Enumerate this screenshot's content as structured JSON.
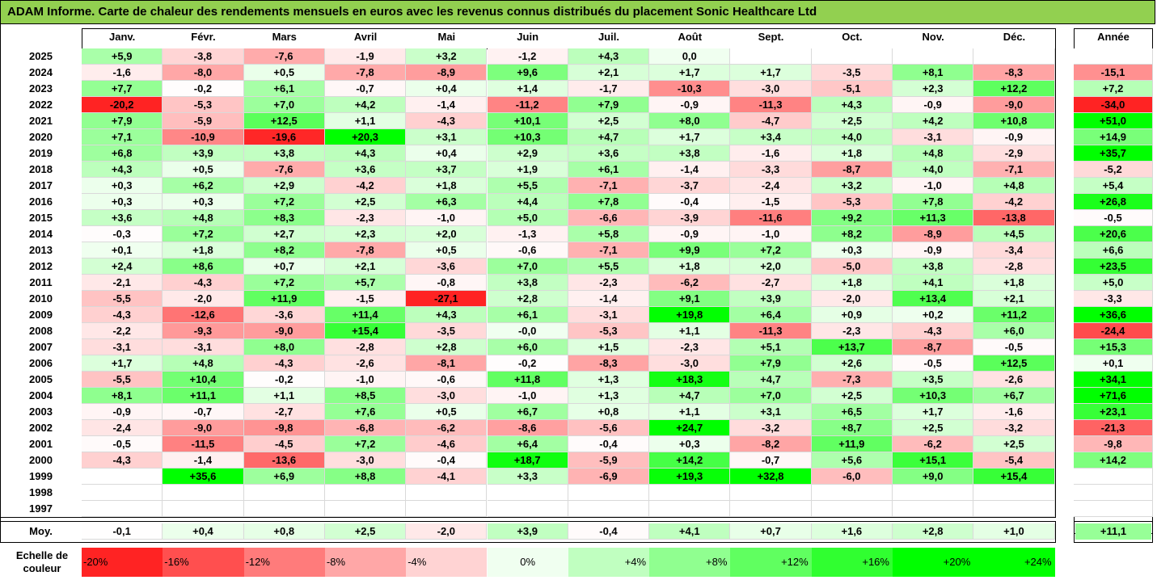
{
  "title": "ADAM Informe. Carte de chaleur des rendements mensuels en euros avec les revenus connus distribués du placement Sonic Healthcare Ltd",
  "chart_data": {
    "type": "heatmap",
    "columns": [
      "Janv.",
      "Févr.",
      "Mars",
      "Avril",
      "Mai",
      "Juin",
      "Juil.",
      "Août",
      "Sept.",
      "Oct.",
      "Nov.",
      "Déc."
    ],
    "year_header": "Année",
    "rows": [
      {
        "year": "2025",
        "m": [
          "+5,9",
          "-3,8",
          "-7,6",
          "-1,9",
          "+3,2",
          "-1,2",
          "+4,3",
          "0,0",
          "",
          "",
          "",
          ""
        ],
        "y": ""
      },
      {
        "year": "2024",
        "m": [
          "-1,6",
          "-8,0",
          "+0,5",
          "-7,8",
          "-8,9",
          "+9,6",
          "+2,1",
          "+1,7",
          "+1,7",
          "-3,5",
          "+8,1",
          "-8,3"
        ],
        "y": "-15,1"
      },
      {
        "year": "2023",
        "m": [
          "+7,7",
          "-0,2",
          "+6,1",
          "-0,7",
          "+0,4",
          "+1,4",
          "-1,7",
          "-10,3",
          "-3,0",
          "-5,1",
          "+2,3",
          "+12,2"
        ],
        "y": "+7,2"
      },
      {
        "year": "2022",
        "m": [
          "-20,2",
          "-5,3",
          "+7,0",
          "+4,2",
          "-1,4",
          "-11,2",
          "+7,9",
          "-0,9",
          "-11,3",
          "+4,3",
          "-0,9",
          "-9,0"
        ],
        "y": "-34,0"
      },
      {
        "year": "2021",
        "m": [
          "+7,9",
          "-5,9",
          "+12,5",
          "+1,1",
          "-4,3",
          "+10,1",
          "+2,5",
          "+8,0",
          "-4,7",
          "+2,5",
          "+4,2",
          "+10,8"
        ],
        "y": "+51,0"
      },
      {
        "year": "2020",
        "m": [
          "+7,1",
          "-10,9",
          "-19,6",
          "+20,3",
          "+3,1",
          "+10,3",
          "+4,7",
          "+1,7",
          "+3,4",
          "+4,0",
          "-3,1",
          "-0,9"
        ],
        "y": "+14,9"
      },
      {
        "year": "2019",
        "m": [
          "+6,8",
          "+3,9",
          "+3,8",
          "+4,3",
          "+0,4",
          "+2,9",
          "+3,6",
          "+3,8",
          "-1,6",
          "+1,8",
          "+4,8",
          "-2,9"
        ],
        "y": "+35,7"
      },
      {
        "year": "2018",
        "m": [
          "+4,3",
          "+0,5",
          "-7,6",
          "+3,6",
          "+3,7",
          "+1,9",
          "+6,1",
          "-1,4",
          "-3,3",
          "-8,7",
          "+4,0",
          "-7,1"
        ],
        "y": "-5,2"
      },
      {
        "year": "2017",
        "m": [
          "+0,3",
          "+6,2",
          "+2,9",
          "-4,2",
          "+1,8",
          "+5,5",
          "-7,1",
          "-3,7",
          "-2,4",
          "+3,2",
          "-1,0",
          "+4,8"
        ],
        "y": "+5,4"
      },
      {
        "year": "2016",
        "m": [
          "+0,3",
          "+0,3",
          "+7,2",
          "+2,5",
          "+6,3",
          "+4,4",
          "+7,8",
          "-0,4",
          "-1,5",
          "-5,3",
          "+7,8",
          "-4,2"
        ],
        "y": "+26,8"
      },
      {
        "year": "2015",
        "m": [
          "+3,6",
          "+4,8",
          "+8,3",
          "-2,3",
          "-1,0",
          "+5,0",
          "-6,6",
          "-3,9",
          "-11,6",
          "+9,2",
          "+11,3",
          "-13,8"
        ],
        "y": "-0,5"
      },
      {
        "year": "2014",
        "m": [
          "-0,3",
          "+7,2",
          "+2,7",
          "+2,3",
          "+2,0",
          "-1,3",
          "+5,8",
          "-0,9",
          "-1,0",
          "+8,2",
          "-8,9",
          "+4,5"
        ],
        "y": "+20,6"
      },
      {
        "year": "2013",
        "m": [
          "+0,1",
          "+1,8",
          "+8,2",
          "-7,8",
          "+0,5",
          "-0,6",
          "-7,1",
          "+9,9",
          "+7,2",
          "+0,3",
          "-0,9",
          "-3,4"
        ],
        "y": "+6,6"
      },
      {
        "year": "2012",
        "m": [
          "+2,4",
          "+8,6",
          "+0,7",
          "+2,1",
          "-3,6",
          "+7,0",
          "+5,5",
          "+1,8",
          "+2,0",
          "-5,0",
          "+3,8",
          "-2,8"
        ],
        "y": "+23,5"
      },
      {
        "year": "2011",
        "m": [
          "-2,1",
          "-4,3",
          "+7,2",
          "+5,7",
          "-0,8",
          "+3,8",
          "-2,3",
          "-6,2",
          "-2,7",
          "+1,8",
          "+4,1",
          "+1,8"
        ],
        "y": "+5,0"
      },
      {
        "year": "2010",
        "m": [
          "-5,5",
          "-2,0",
          "+11,9",
          "-1,5",
          "-27,1",
          "+2,8",
          "-1,4",
          "+9,1",
          "+3,9",
          "-2,0",
          "+13,4",
          "+2,1"
        ],
        "y": "-3,3"
      },
      {
        "year": "2009",
        "m": [
          "-4,3",
          "-12,6",
          "-3,6",
          "+11,4",
          "+4,3",
          "+6,1",
          "-3,1",
          "+19,8",
          "+6,4",
          "+0,9",
          "+0,2",
          "+11,2"
        ],
        "y": "+36,6"
      },
      {
        "year": "2008",
        "m": [
          "-2,2",
          "-9,3",
          "-9,0",
          "+15,4",
          "-3,5",
          "-0,0",
          "-5,3",
          "+1,1",
          "-11,3",
          "-2,3",
          "-4,3",
          "+6,0"
        ],
        "y": "-24,4"
      },
      {
        "year": "2007",
        "m": [
          "-3,1",
          "-3,1",
          "+8,0",
          "-2,8",
          "+2,8",
          "+6,0",
          "+1,5",
          "-2,3",
          "+5,1",
          "+13,7",
          "-8,7",
          "-0,5"
        ],
        "y": "+15,3"
      },
      {
        "year": "2006",
        "m": [
          "+1,7",
          "+4,8",
          "-4,3",
          "-2,6",
          "-8,1",
          "-0,2",
          "-8,3",
          "-3,0",
          "+7,9",
          "+2,6",
          "-0,5",
          "+12,5"
        ],
        "y": "+0,1"
      },
      {
        "year": "2005",
        "m": [
          "-5,5",
          "+10,4",
          "-0,2",
          "-1,0",
          "-0,6",
          "+11,8",
          "+1,3",
          "+18,3",
          "+4,7",
          "-7,3",
          "+3,5",
          "-2,6"
        ],
        "y": "+34,1"
      },
      {
        "year": "2004",
        "m": [
          "+8,1",
          "+11,1",
          "+1,1",
          "+8,5",
          "-3,0",
          "-1,0",
          "+1,3",
          "+4,7",
          "+7,0",
          "+2,5",
          "+10,3",
          "+6,7"
        ],
        "y": "+71,6"
      },
      {
        "year": "2003",
        "m": [
          "-0,9",
          "-0,7",
          "-2,7",
          "+7,6",
          "+0,5",
          "+6,7",
          "+0,8",
          "+1,1",
          "+3,1",
          "+6,5",
          "+1,7",
          "-1,6"
        ],
        "y": "+23,1"
      },
      {
        "year": "2002",
        "m": [
          "-2,4",
          "-9,0",
          "-9,8",
          "-6,8",
          "-6,2",
          "-8,6",
          "-5,6",
          "+24,7",
          "-3,2",
          "+8,7",
          "+2,5",
          "-3,2"
        ],
        "y": "-21,3"
      },
      {
        "year": "2001",
        "m": [
          "-0,5",
          "-11,5",
          "-4,5",
          "+7,2",
          "-4,6",
          "+6,4",
          "-0,4",
          "+0,3",
          "-8,2",
          "+11,9",
          "-6,2",
          "+2,5"
        ],
        "y": "-9,8"
      },
      {
        "year": "2000",
        "m": [
          "-4,3",
          "-1,4",
          "-13,6",
          "-3,0",
          "-0,4",
          "+18,7",
          "-5,9",
          "+14,2",
          "-0,7",
          "+5,6",
          "+15,1",
          "-5,4"
        ],
        "y": "+14,2"
      },
      {
        "year": "1999",
        "m": [
          "",
          "+35,6",
          "+6,9",
          "+8,8",
          "-4,1",
          "+3,3",
          "-6,9",
          "+19,3",
          "+32,8",
          "-6,0",
          "+9,0",
          "+15,4"
        ],
        "y": ""
      },
      {
        "year": "1998",
        "m": [
          "",
          "",
          "",
          "",
          "",
          "",
          "",
          "",
          "",
          "",
          "",
          ""
        ],
        "y": ""
      },
      {
        "year": "1997",
        "m": [
          "",
          "",
          "",
          "",
          "",
          "",
          "",
          "",
          "",
          "",
          "",
          ""
        ],
        "y": ""
      }
    ],
    "average": {
      "label": "Moy.",
      "m": [
        "-0,1",
        "+0,4",
        "+0,8",
        "+2,5",
        "-2,0",
        "+3,9",
        "-0,4",
        "+4,1",
        "+0,7",
        "+1,6",
        "+2,8",
        "+1,0"
      ],
      "y": "+11,1"
    },
    "scale": {
      "label": "Echelle de couleur",
      "items": [
        "-20%",
        "-16%",
        "-12%",
        "-8%",
        "-4%",
        "0%",
        "+4%",
        "+8%",
        "+12%",
        "+16%",
        "+20%",
        "+24%"
      ],
      "values": [
        -20,
        -16,
        -12,
        -8,
        -4,
        0,
        4,
        8,
        12,
        16,
        20,
        24
      ]
    },
    "colors": {
      "negative": "#ff0000",
      "positive": "#00ff00",
      "neutral": "#ffffff",
      "title_bg": "#92d050"
    }
  }
}
